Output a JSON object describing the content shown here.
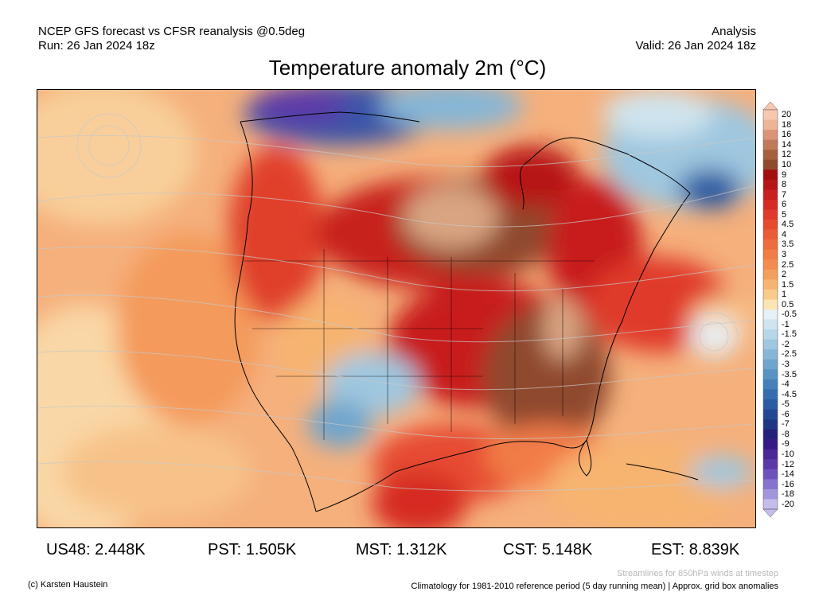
{
  "header": {
    "line1_left": "NCEP GFS forecast vs CFSR reanalysis @0.5deg",
    "line2_left": "Run: 26 Jan 2024 18z",
    "line1_right": "Analysis",
    "line2_right": "Valid: 26 Jan 2024 18z",
    "title": "Temperature anomaly 2m (°C)"
  },
  "colorbar": {
    "labels": [
      "20",
      "18",
      "16",
      "14",
      "12",
      "10",
      "9",
      "8",
      "7",
      "6",
      "5",
      "4.5",
      "4",
      "3.5",
      "3",
      "2.5",
      "2",
      "1.5",
      "1",
      "0.5",
      "-0.5",
      "-1",
      "-1.5",
      "-2",
      "-2.5",
      "-3",
      "-3.5",
      "-4",
      "-4.5",
      "-5",
      "-6",
      "-7",
      "-8",
      "-9",
      "-10",
      "-12",
      "-14",
      "-16",
      "-18",
      "-20"
    ],
    "colors": [
      "#f7c7b0",
      "#eeb498",
      "#d99475",
      "#c07a5a",
      "#a5603f",
      "#8f4a2e",
      "#a30f0f",
      "#b71616",
      "#c81f1f",
      "#d62b24",
      "#e03a2a",
      "#e64b30",
      "#ea5c36",
      "#ee6c3e",
      "#f27c46",
      "#f48c50",
      "#f59e5e",
      "#f7b471",
      "#f9cb8a",
      "#fbe5b3",
      "#e7f0f4",
      "#cfe4ee",
      "#b7d6e7",
      "#9fc7df",
      "#86b6d6",
      "#6fa5cd",
      "#5893c4",
      "#4480ba",
      "#346daf",
      "#2a5ba3",
      "#234893",
      "#1f3682",
      "#24217a",
      "#351985",
      "#4a2896",
      "#5b3aa8",
      "#6e52bc",
      "#8673cd",
      "#a196dd",
      "#c4bdec"
    ]
  },
  "stats": [
    {
      "label": "US48: 2.448K"
    },
    {
      "label": "PST: 1.505K"
    },
    {
      "label": "MST: 1.312K"
    },
    {
      "label": "CST: 5.148K"
    },
    {
      "label": "EST: 8.839K"
    }
  ],
  "footer": {
    "credit": "(c) Karsten Haustein",
    "streamlines_note": "Streamlines for 850hPa winds at timestep",
    "climatology_note": "Climatology for 1981-2010 reference period (5 day running mean) | Approx. grid box anomalies"
  }
}
